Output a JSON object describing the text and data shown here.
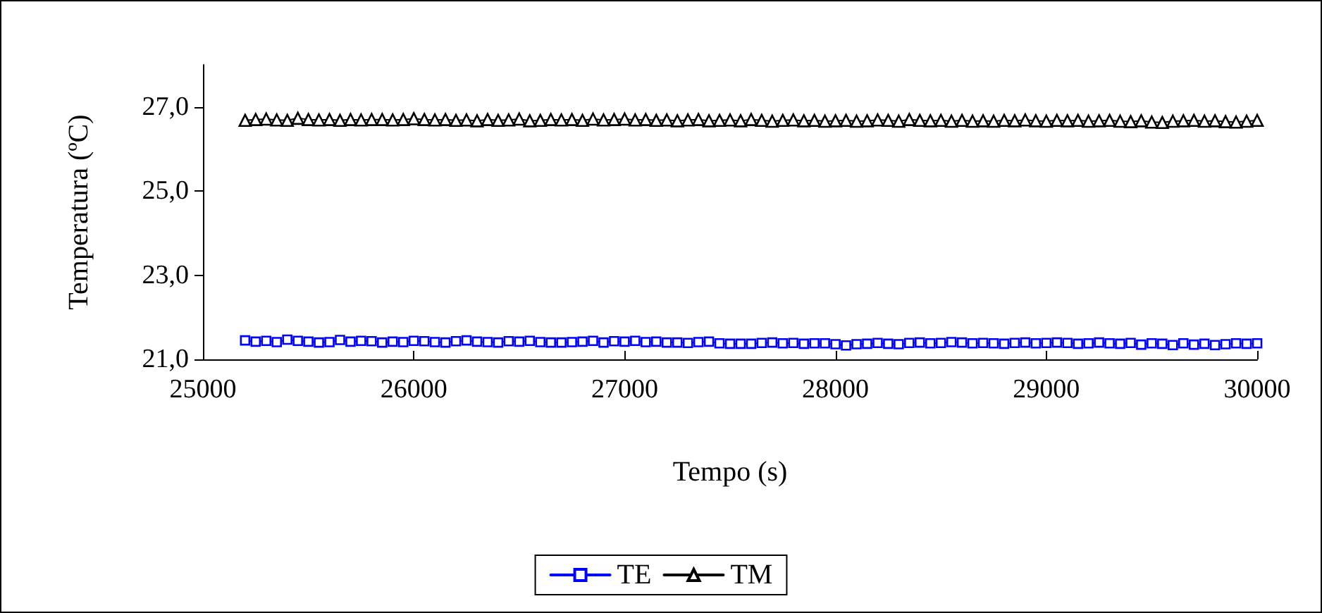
{
  "chart_data": {
    "type": "line",
    "xlabel": "Tempo (s)",
    "ylabel": "Temperatura (ºC)",
    "x": [
      25200,
      25250,
      25300,
      25350,
      25400,
      25450,
      25500,
      25550,
      25600,
      25650,
      25700,
      25750,
      25800,
      25850,
      25900,
      25950,
      26000,
      26050,
      26100,
      26150,
      26200,
      26250,
      26300,
      26350,
      26400,
      26450,
      26500,
      26550,
      26600,
      26650,
      26700,
      26750,
      26800,
      26850,
      26900,
      26950,
      27000,
      27050,
      27100,
      27150,
      27200,
      27250,
      27300,
      27350,
      27400,
      27450,
      27500,
      27550,
      27600,
      27650,
      27700,
      27750,
      27800,
      27850,
      27900,
      27950,
      28000,
      28050,
      28100,
      28150,
      28200,
      28250,
      28300,
      28350,
      28400,
      28450,
      28500,
      28550,
      28600,
      28650,
      28700,
      28750,
      28800,
      28850,
      28900,
      28950,
      29000,
      29050,
      29100,
      29150,
      29200,
      29250,
      29300,
      29350,
      29400,
      29450,
      29500,
      29550,
      29600,
      29650,
      29700,
      29750,
      29800,
      29850,
      29900,
      29950,
      30000
    ],
    "series": [
      {
        "name": "TE",
        "color": "#0000ff",
        "marker": "square",
        "values": [
          21.45,
          21.42,
          21.44,
          21.41,
          21.47,
          21.44,
          21.42,
          21.4,
          21.41,
          21.46,
          21.42,
          21.44,
          21.43,
          21.4,
          21.42,
          21.41,
          21.44,
          21.43,
          21.41,
          21.4,
          21.43,
          21.45,
          21.42,
          21.41,
          21.4,
          21.43,
          21.42,
          21.44,
          21.41,
          21.4,
          21.4,
          21.41,
          21.42,
          21.44,
          21.4,
          21.43,
          21.42,
          21.44,
          21.41,
          21.42,
          21.4,
          21.4,
          21.39,
          21.41,
          21.42,
          21.38,
          21.37,
          21.37,
          21.37,
          21.39,
          21.4,
          21.38,
          21.39,
          21.37,
          21.38,
          21.38,
          21.36,
          21.33,
          21.36,
          21.37,
          21.39,
          21.37,
          21.36,
          21.39,
          21.4,
          21.38,
          21.39,
          21.41,
          21.4,
          21.38,
          21.39,
          21.38,
          21.37,
          21.39,
          21.4,
          21.38,
          21.39,
          21.4,
          21.39,
          21.37,
          21.38,
          21.4,
          21.38,
          21.37,
          21.39,
          21.35,
          21.38,
          21.37,
          21.34,
          21.38,
          21.35,
          21.37,
          21.34,
          21.36,
          21.38,
          21.37,
          21.38
        ]
      },
      {
        "name": "TM",
        "color": "#000000",
        "marker": "triangle",
        "values": [
          26.68,
          26.7,
          26.71,
          26.69,
          26.68,
          26.73,
          26.7,
          26.69,
          26.7,
          26.68,
          26.7,
          26.69,
          26.7,
          26.7,
          26.69,
          26.7,
          26.72,
          26.7,
          26.69,
          26.7,
          26.68,
          26.69,
          26.67,
          26.7,
          26.68,
          26.69,
          26.71,
          26.67,
          26.68,
          26.7,
          26.69,
          26.7,
          26.68,
          26.71,
          26.69,
          26.7,
          26.71,
          26.69,
          26.7,
          26.68,
          26.69,
          26.67,
          26.69,
          26.7,
          26.67,
          26.68,
          26.69,
          26.67,
          26.7,
          26.68,
          26.66,
          26.68,
          26.69,
          26.67,
          26.68,
          26.66,
          26.67,
          26.68,
          26.66,
          26.67,
          26.69,
          26.68,
          26.66,
          26.7,
          26.68,
          26.67,
          26.68,
          26.66,
          26.68,
          26.66,
          26.67,
          26.66,
          26.68,
          26.67,
          26.69,
          26.67,
          26.66,
          26.68,
          26.67,
          26.68,
          26.66,
          26.67,
          26.68,
          26.66,
          26.65,
          26.67,
          26.64,
          26.63,
          26.66,
          26.67,
          26.68,
          26.66,
          26.67,
          26.65,
          26.64,
          26.66,
          26.68
        ]
      }
    ],
    "xlim": [
      25000,
      30000
    ],
    "xticks": [
      25000,
      26000,
      27000,
      28000,
      29000,
      30000
    ],
    "ylim": [
      21,
      28
    ],
    "yticks": [
      {
        "value": 21,
        "label": "21,0"
      },
      {
        "value": 23,
        "label": "23,0"
      },
      {
        "value": 25,
        "label": "25,0"
      },
      {
        "value": 27,
        "label": "27,0"
      }
    ],
    "grid": false,
    "legend": "bottom",
    "line_style": "solid"
  }
}
